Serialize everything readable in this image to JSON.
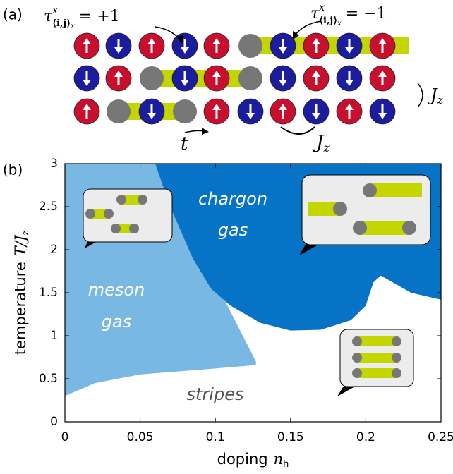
{
  "panel_labels": [
    "(a)",
    "(b)"
  ],
  "panel_a": {
    "tau": [
      {
        "symbol": "τ",
        "sup": "x",
        "sub": "⟨i,j⟩",
        "sub2": "x",
        "rhs": "= +1"
      },
      {
        "symbol": "τ",
        "sup": "x",
        "sub": "⟨i,j⟩",
        "sub2": "x",
        "rhs": "= −1"
      }
    ],
    "hop": "t",
    "jz_bracket": {
      "main": "J",
      "sub": "z"
    },
    "jz_bond": {
      "main": "J",
      "sub": "z"
    }
  },
  "chart_data": {
    "type": "phase",
    "xlabel": {
      "text": "doping",
      "var": "n",
      "sub": "h"
    },
    "ylabel": {
      "text": "temperature",
      "var": "T/J",
      "sub": "z"
    },
    "xlim": [
      0,
      0.25
    ],
    "ylim": [
      0,
      3
    ],
    "xticks": [
      0,
      0.05,
      0.1,
      0.15,
      0.2,
      0.25
    ],
    "yticks": [
      0,
      0.5,
      1,
      1.5,
      2,
      2.5,
      3
    ],
    "regions": [
      {
        "label": [
          "meson",
          "gas"
        ],
        "color": "#7ab8e4",
        "x": [
          0,
          0,
          0.06,
          0.127,
          0.127,
          0.1,
          0.05,
          0.02
        ],
        "y": [
          0.3,
          3,
          3,
          0.7,
          0.66,
          0.62,
          0.55,
          0.45
        ]
      },
      {
        "label": [
          "chargon",
          "gas"
        ],
        "color": "#0673c6",
        "x": [
          0.06,
          0.25,
          0.25,
          0.23,
          0.21,
          0.205,
          0.2,
          0.19,
          0.17,
          0.15,
          0.13,
          0.11,
          0.097,
          0.085,
          0.07
        ],
        "y": [
          3,
          3,
          1.42,
          1.5,
          1.7,
          1.62,
          1.35,
          1.18,
          1.07,
          1.06,
          1.15,
          1.35,
          1.55,
          1.9,
          2.5
        ]
      },
      {
        "label": [
          "stripes"
        ],
        "color": "#ffffff",
        "x": [],
        "y": []
      }
    ]
  }
}
